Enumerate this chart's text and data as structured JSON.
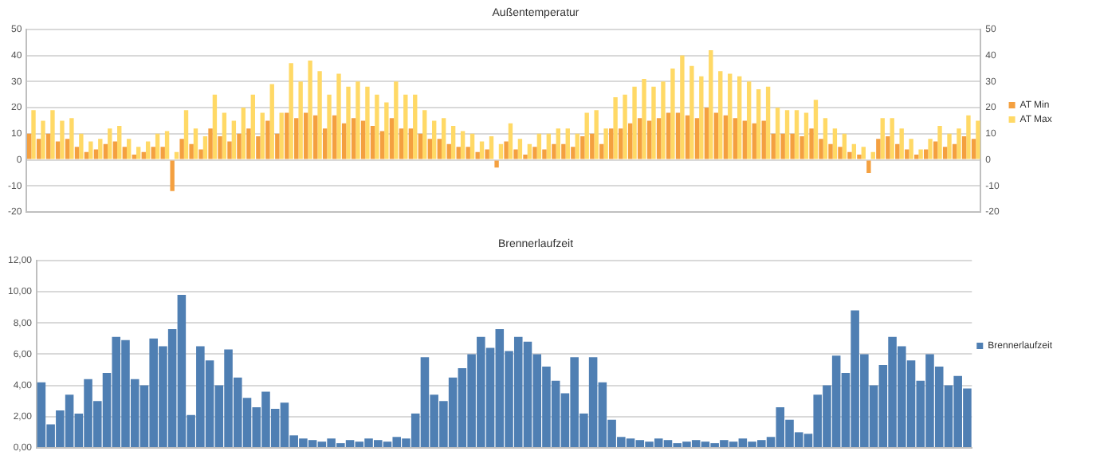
{
  "chart_data": [
    {
      "type": "bar",
      "title": "Außentemperatur",
      "categories": [
        null,
        null,
        null,
        null,
        null,
        null,
        null,
        null,
        null,
        null,
        null,
        null,
        null,
        null,
        null,
        null,
        null,
        null,
        null,
        null,
        null,
        null,
        null,
        null,
        null,
        null,
        null,
        null,
        null,
        null,
        null,
        null,
        null,
        null,
        null,
        null,
        null,
        null,
        null,
        null,
        null,
        null,
        null,
        null,
        null,
        null,
        null,
        null,
        null,
        null,
        null,
        null,
        null,
        null,
        null,
        null,
        null,
        null,
        null,
        null,
        null,
        null,
        null,
        null,
        null,
        null,
        null,
        null,
        null,
        null,
        null,
        null,
        null,
        null,
        null,
        null,
        null,
        null,
        null,
        null,
        null,
        null,
        null,
        null,
        null,
        null,
        null,
        null,
        null,
        null,
        null,
        null,
        null,
        null,
        null,
        null,
        null,
        null,
        null,
        null
      ],
      "series": [
        {
          "name": "AT Min",
          "color": "#f4a040",
          "values": [
            10,
            8,
            10,
            7,
            8,
            5,
            3,
            4,
            6,
            7,
            5,
            2,
            3,
            5,
            5,
            -12,
            8,
            6,
            4,
            12,
            9,
            7,
            10,
            12,
            9,
            15,
            10,
            18,
            16,
            18,
            17,
            12,
            17,
            14,
            16,
            15,
            13,
            11,
            16,
            12,
            12,
            10,
            8,
            8,
            6,
            5,
            5,
            3,
            4,
            -3,
            7,
            4,
            2,
            5,
            4,
            6,
            6,
            5,
            9,
            10,
            6,
            12,
            12,
            14,
            16,
            15,
            16,
            18,
            18,
            17,
            16,
            20,
            18,
            17,
            16,
            15,
            14,
            15,
            10,
            10,
            10,
            9,
            12,
            8,
            6,
            5,
            3,
            2,
            -5,
            8,
            9,
            6,
            4,
            2,
            4,
            7,
            5,
            6,
            9,
            8
          ]
        },
        {
          "name": "AT Max",
          "color": "#ffd966",
          "values": [
            19,
            15,
            19,
            15,
            16,
            10,
            7,
            8,
            12,
            13,
            8,
            5,
            7,
            10,
            11,
            3,
            19,
            12,
            9,
            25,
            18,
            15,
            20,
            25,
            18,
            29,
            18,
            37,
            30,
            38,
            34,
            25,
            33,
            28,
            30,
            28,
            25,
            22,
            30,
            25,
            25,
            19,
            15,
            16,
            13,
            11,
            10,
            7,
            9,
            6,
            14,
            8,
            6,
            10,
            10,
            12,
            12,
            10,
            18,
            19,
            12,
            24,
            25,
            28,
            31,
            28,
            30,
            35,
            40,
            36,
            32,
            42,
            34,
            33,
            32,
            30,
            27,
            28,
            20,
            19,
            19,
            18,
            23,
            16,
            12,
            10,
            6,
            5,
            3,
            16,
            16,
            12,
            8,
            4,
            8,
            13,
            10,
            12,
            17,
            15
          ]
        }
      ],
      "ylim": [
        -20,
        50
      ],
      "yticks": [
        -20,
        -10,
        0,
        10,
        20,
        30,
        40,
        50
      ],
      "y2lim": [
        -20,
        50
      ],
      "y2ticks": [
        -20,
        -10,
        0,
        10,
        20,
        30,
        40,
        50
      ],
      "grid": "y",
      "legend": "right",
      "tick_labels": "y"
    },
    {
      "type": "bar",
      "title": "Brennerlaufzeit",
      "categories": [
        null,
        null,
        null,
        null,
        null,
        null,
        null,
        null,
        null,
        null,
        null,
        null,
        null,
        null,
        null,
        null,
        null,
        null,
        null,
        null,
        null,
        null,
        null,
        null,
        null,
        null,
        null,
        null,
        null,
        null,
        null,
        null,
        null,
        null,
        null,
        null,
        null,
        null,
        null,
        null,
        null,
        null,
        null,
        null,
        null,
        null,
        null,
        null,
        null,
        null,
        null,
        null,
        null,
        null,
        null,
        null,
        null,
        null,
        null,
        null,
        null,
        null,
        null,
        null,
        null,
        null,
        null,
        null,
        null,
        null,
        null,
        null,
        null,
        null,
        null,
        null,
        null,
        null,
        null,
        null,
        null,
        null,
        null,
        null,
        null,
        null,
        null,
        null,
        null,
        null,
        null,
        null,
        null,
        null,
        null,
        null,
        null,
        null,
        null,
        null
      ],
      "series": [
        {
          "name": "Brennerlaufzeit",
          "color": "#4f7fb3",
          "values": [
            4.2,
            1.5,
            2.4,
            3.4,
            2.2,
            4.4,
            3.0,
            4.8,
            7.1,
            6.9,
            4.4,
            4.0,
            7.0,
            6.5,
            7.6,
            9.8,
            2.1,
            6.5,
            5.6,
            4.0,
            6.3,
            4.5,
            3.2,
            2.6,
            3.6,
            2.5,
            2.9,
            0.8,
            0.6,
            0.5,
            0.4,
            0.6,
            0.3,
            0.5,
            0.4,
            0.6,
            0.5,
            0.4,
            0.7,
            0.6,
            2.2,
            5.8,
            3.4,
            3.0,
            4.5,
            5.1,
            6.0,
            7.1,
            6.4,
            7.6,
            6.2,
            7.1,
            6.8,
            6.0,
            5.2,
            4.3,
            3.5,
            5.8,
            2.2,
            5.8,
            4.2,
            1.8,
            0.7,
            0.6,
            0.5,
            0.4,
            0.6,
            0.5,
            0.3,
            0.4,
            0.5,
            0.4,
            0.3,
            0.5,
            0.4,
            0.6,
            0.4,
            0.5,
            0.7,
            2.6,
            1.8,
            1.0,
            0.9,
            3.4,
            4.0,
            5.9,
            4.8,
            8.8,
            6.0,
            4.0,
            5.3,
            7.1,
            6.5,
            5.6,
            4.3,
            6.0,
            5.2,
            4.0,
            4.6,
            3.8
          ]
        }
      ],
      "ylim": [
        0,
        12
      ],
      "yticks": [
        {
          "value": 0,
          "label": "0,00"
        },
        {
          "value": 2,
          "label": "2,00"
        },
        {
          "value": 4,
          "label": "4,00"
        },
        {
          "value": 6,
          "label": "6,00"
        },
        {
          "value": 8,
          "label": "8,00"
        },
        {
          "value": 10,
          "label": "10,00"
        },
        {
          "value": 12,
          "label": "12,00"
        }
      ],
      "grid": "y",
      "legend": "right",
      "tick_labels": "y"
    }
  ]
}
